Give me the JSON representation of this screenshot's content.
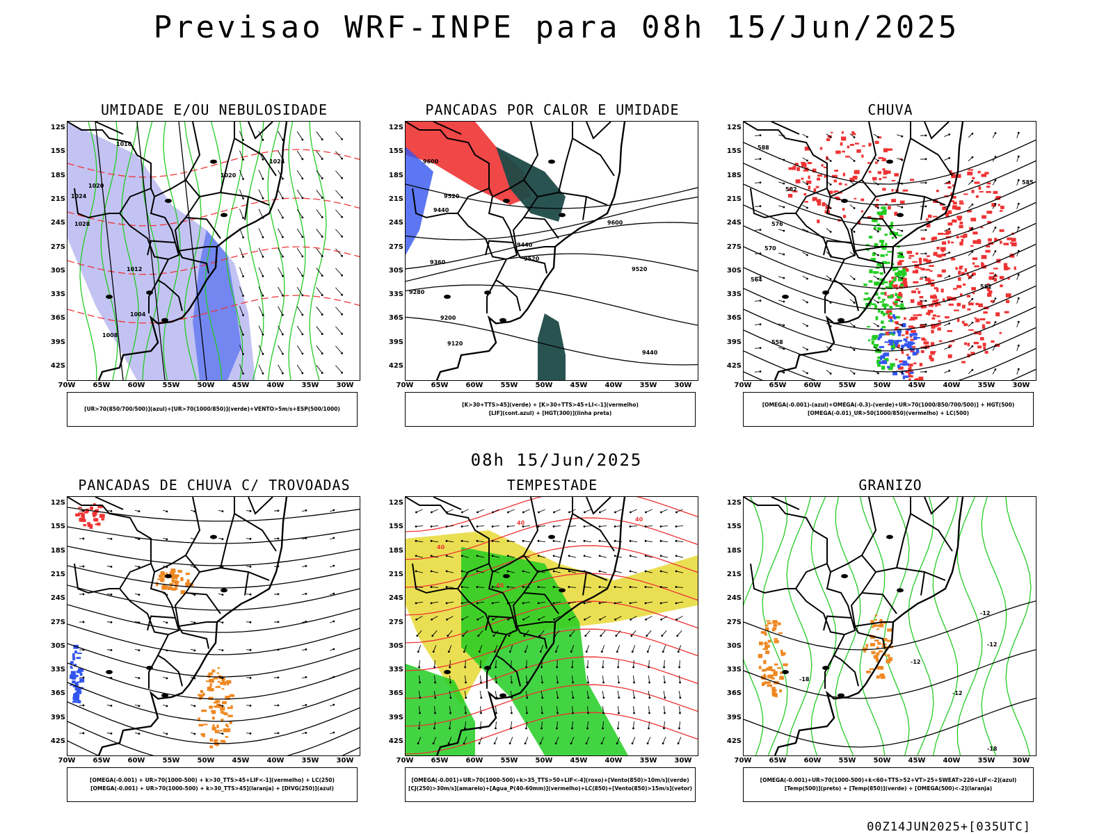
{
  "header": {
    "title": "Previsao WRF-INPE  para 08h 15/Jun/2025",
    "mid_title": "08h 15/Jun/2025",
    "footer": "00Z14JUN2025+[035UTC]"
  },
  "axes": {
    "lat_labels": [
      "12S",
      "15S",
      "18S",
      "21S",
      "24S",
      "27S",
      "30S",
      "33S",
      "36S",
      "39S",
      "42S"
    ],
    "lon_labels": [
      "70W",
      "65W",
      "60W",
      "55W",
      "50W",
      "45W",
      "40W",
      "35W",
      "30W"
    ]
  },
  "panels": [
    {
      "id": "umidade",
      "title": "UMIDADE E/OU NEBULOSIDADE",
      "legend": [
        "[UR>70(850/700/500)](azul)+[UR>70(1000/850)](verde)+VENTO>5m/s+ESP(500/1000)"
      ],
      "contour_labels": [
        "1016",
        "1020",
        "1024",
        "1028",
        "1012",
        "1008",
        "1004",
        "1020",
        "1024"
      ]
    },
    {
      "id": "pancadas-calor",
      "title": "PANCADAS POR CALOR E UMIDADE",
      "legend": [
        "[K>30+TTS>45](verde) + [K>30+TTS>45+LI<-1](vermelho)",
        "[LIF](cont.azul) + [HGT(300)](linha preta)"
      ],
      "contour_labels": [
        "9600",
        "9520",
        "9440",
        "9360",
        "9280",
        "9200",
        "9120",
        "9440",
        "9520",
        "9600",
        "9520",
        "9440"
      ]
    },
    {
      "id": "chuva",
      "title": "CHUVA",
      "legend": [
        "[OMEGA(-0.001)-(azul)+OMEGA(-0.3)-(verde)+UR>70(1000/850/700/500)] + HGT(500)",
        "[OMEGA(-0.01)_UR>50(1000/850)(vermelho) + LC(500)"
      ],
      "contour_labels": [
        "588",
        "582",
        "576",
        "570",
        "564",
        "558",
        "585",
        "582"
      ]
    },
    {
      "id": "pancadas-trovoadas",
      "title": "PANCADAS DE CHUVA C/ TROVOADAS",
      "legend": [
        "[OMEGA(-0.001) + UR>70(1000-500) + k>30_TTS>45+LIF<-1](vermelho) + LC(250)",
        "[OMEGA(-0.001) + UR>70(1000-500) + k>30_TTS>45](laranja) + [DIVG(250)](azul)"
      ],
      "contour_labels": []
    },
    {
      "id": "tempestade",
      "title": "TEMPESTADE",
      "legend": [
        "[OMEGA(-0.001)+UR>70(1000-500)+k>35_TTS>50+LIF<-4](roxo)+[Vento(850)>10m/s](verde)",
        "[CJ(250)>30m/s](amarelo)+[Agua_P(40-60mm)](vermelho)+LC(850)+[Vento(850)>15m/s](vetor)"
      ],
      "contour_labels": [
        "40",
        "40",
        "40",
        "40"
      ]
    },
    {
      "id": "granizo",
      "title": "GRANIZO",
      "legend": [
        "[OMEGA(-0.001)+UR>70(1000-500)+k<60+TTS>52+VT>25+SWEAT>220+LIF<-2](azul)",
        "[Temp(500)](preto) + [Temp(850)](verde) + [OMEGA(500)<-2](laranja)"
      ],
      "contour_labels": [
        "-12",
        "-12",
        "-12",
        "-18",
        "-18",
        "-12"
      ]
    }
  ],
  "colors": {
    "blue": "#3355ee",
    "lavender": "#aaaaee",
    "green": "#22cc22",
    "red": "#ee3333",
    "orange": "#ee8822",
    "yellow": "#e8dc40",
    "darkteal": "#1e4a48",
    "black": "#000000"
  }
}
